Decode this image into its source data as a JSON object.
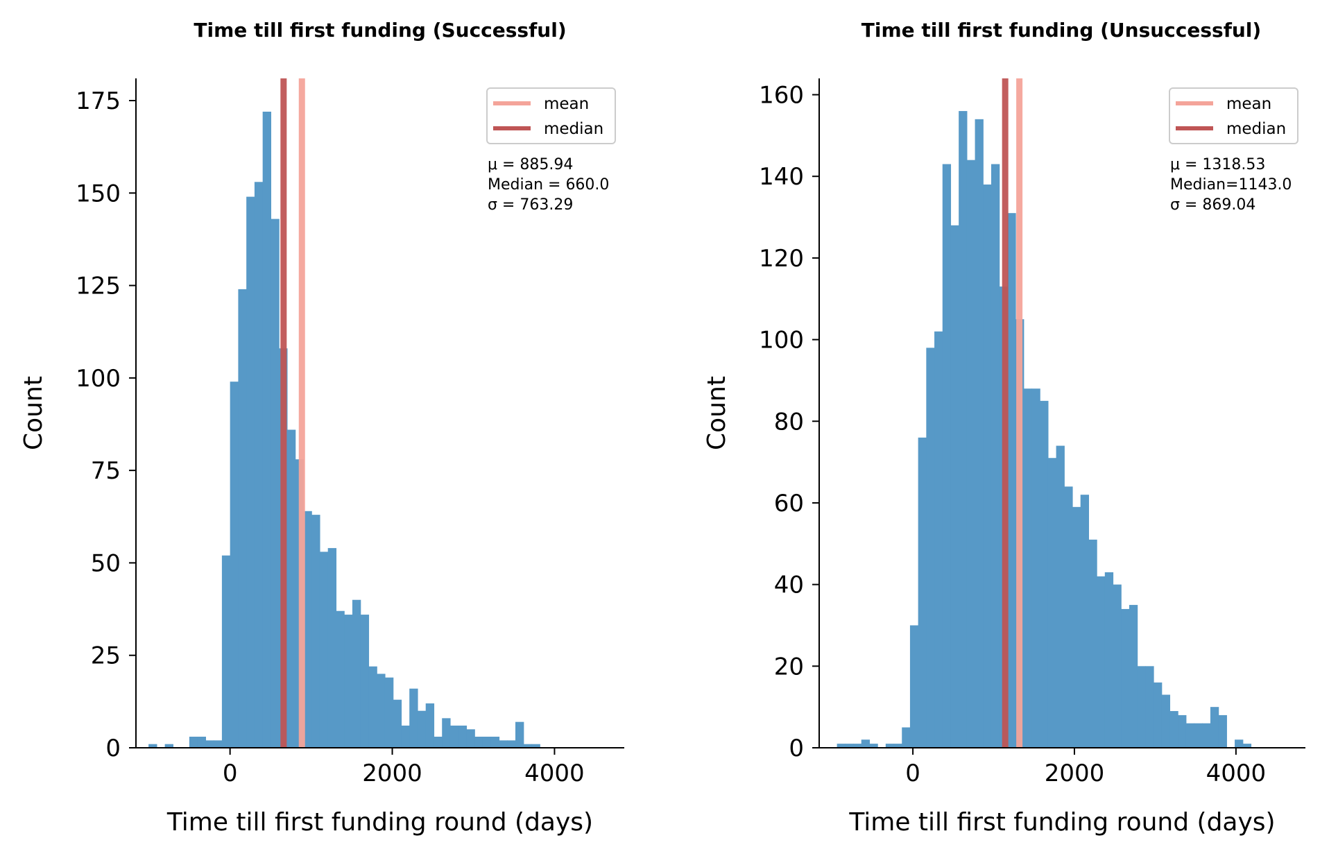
{
  "colors": {
    "bars": "#5799c7",
    "mean": "#f4a49a",
    "median": "#bf5555"
  },
  "chart_data": [
    {
      "type": "bar",
      "title": "Time till first funding (Successful)",
      "xlabel": "Time till first funding round (days)",
      "ylabel": "Count",
      "xlim": [
        -1160,
        4860
      ],
      "ylim": [
        0,
        181
      ],
      "xticks": [
        0,
        2000,
        4000
      ],
      "xtick_labels": [
        "0",
        "2000",
        "4000"
      ],
      "yticks": [
        0,
        25,
        50,
        75,
        100,
        125,
        150,
        175
      ],
      "ytick_labels": [
        "0",
        "25",
        "50",
        "75",
        "100",
        "125",
        "150",
        "175"
      ],
      "bin_start": -1005,
      "bin_width": 100.5,
      "values": [
        1,
        0,
        1,
        0,
        0,
        3,
        3,
        2,
        2,
        52,
        99,
        124,
        149,
        153,
        172,
        143,
        108,
        86,
        78,
        64,
        63,
        53,
        54,
        37,
        36,
        40,
        36,
        22,
        20,
        19,
        13,
        6,
        16,
        10,
        12,
        3,
        8,
        6,
        6,
        5,
        3,
        3,
        3,
        2,
        2,
        7,
        1,
        1
      ],
      "mean": 885.94,
      "median": 660.0,
      "legend": {
        "entries": [
          "mean",
          "median"
        ],
        "placement": "upper right"
      },
      "stats": [
        "μ =  885.94",
        "Median = 660.0",
        "σ = 763.29"
      ],
      "grid": false
    },
    {
      "type": "bar",
      "title": "Time till first funding (Unsuccessful)",
      "xlabel": "Time till first funding round (days)",
      "ylabel": "Count",
      "xlim": [
        -1160,
        4860
      ],
      "ylim": [
        0,
        164
      ],
      "xticks": [
        0,
        2000,
        4000
      ],
      "xtick_labels": [
        "0",
        "2000",
        "4000"
      ],
      "yticks": [
        0,
        20,
        40,
        60,
        80,
        100,
        120,
        140,
        160
      ],
      "ytick_labels": [
        "0",
        "20",
        "40",
        "60",
        "80",
        "100",
        "120",
        "140",
        "160"
      ],
      "bin_start": -940,
      "bin_width": 100.5,
      "values": [
        1,
        1,
        1,
        2,
        1,
        0,
        1,
        1,
        5,
        30,
        76,
        98,
        102,
        143,
        128,
        156,
        144,
        154,
        138,
        143,
        113,
        131,
        105,
        88,
        88,
        85,
        71,
        74,
        64,
        59,
        62,
        51,
        42,
        43,
        40,
        34,
        35,
        20,
        20,
        16,
        13,
        9,
        8,
        6,
        6,
        6,
        10,
        8,
        0,
        2,
        1
      ],
      "mean": 1318.53,
      "median": 1143.0,
      "legend": {
        "entries": [
          "mean",
          "median"
        ],
        "placement": "upper right"
      },
      "stats": [
        "μ =  1318.53",
        "Median=1143.0",
        "σ = 869.04"
      ],
      "grid": false
    }
  ]
}
